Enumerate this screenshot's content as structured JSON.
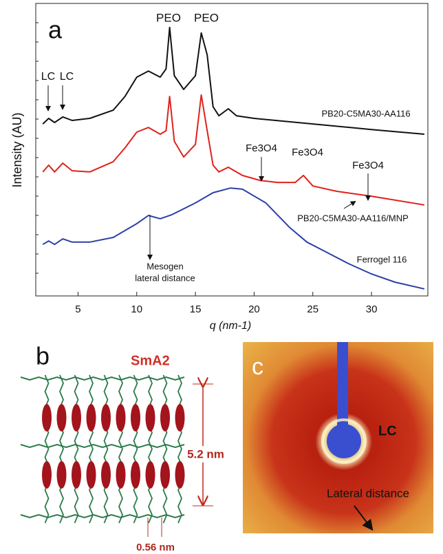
{
  "chart_data": {
    "type": "line",
    "panel_label": "a",
    "x_label": "q (nm-1)",
    "y_label": "Intensity (AU)",
    "xlim": [
      1.4,
      34.8
    ],
    "xticks": [
      5,
      10,
      15,
      20,
      25,
      30
    ],
    "ylim": [
      0,
      100
    ],
    "series": [
      {
        "name": "PB20-C5MA30-AA116",
        "color": "#111111",
        "x": [
          2,
          2.5,
          3,
          3.7,
          4.5,
          6,
          8,
          9,
          10,
          11,
          12,
          12.5,
          12.8,
          13.2,
          14,
          15,
          15.5,
          16,
          16.5,
          17,
          17.8,
          18.5,
          20,
          25,
          30,
          34.5
        ],
        "values": [
          58.8,
          60.7,
          59.3,
          61.2,
          60,
          60.7,
          63.5,
          68.2,
          74.8,
          76.9,
          74.8,
          77.6,
          91.8,
          75.3,
          70.6,
          75.3,
          89.9,
          82.4,
          64.7,
          61.6,
          64,
          61.6,
          60.7,
          58.8,
          56.9,
          55.3
        ]
      },
      {
        "name": "PB20-C5MA30-AA116/MNP",
        "color": "#e0201a",
        "x": [
          2,
          2.5,
          3,
          3.7,
          4.5,
          6,
          8,
          9,
          10,
          11,
          12,
          12.5,
          12.8,
          13.2,
          14,
          15,
          15.5,
          16,
          16.5,
          17,
          17.8,
          19,
          20.5,
          22,
          23.5,
          24.2,
          25,
          27,
          30,
          34.5
        ],
        "values": [
          42.4,
          44.7,
          42.4,
          45.4,
          42.8,
          42.4,
          45.9,
          50.6,
          56,
          57.6,
          55.3,
          56.5,
          68.2,
          52.9,
          47.5,
          51.8,
          68.7,
          56.5,
          44.7,
          42.4,
          44,
          41.2,
          39.5,
          38.8,
          38.8,
          41.2,
          37.6,
          35.8,
          34.1,
          31.1
        ]
      },
      {
        "name": "Ferrogel 116",
        "color": "#2b3fa8",
        "x": [
          2,
          2.5,
          3,
          3.7,
          4.5,
          6,
          8,
          10,
          11,
          12,
          13,
          15,
          16.5,
          18,
          19,
          21,
          23,
          24.5,
          26,
          28,
          30,
          32,
          34.5
        ],
        "values": [
          17.6,
          18.8,
          17.6,
          19.5,
          18.4,
          18.4,
          20,
          24.7,
          27.5,
          26.4,
          27.8,
          31.8,
          35.3,
          36.9,
          36.5,
          31.8,
          23.5,
          18.4,
          15.3,
          11.1,
          7.5,
          4.7,
          2.4
        ]
      }
    ],
    "annotations": [
      "LC",
      "LC",
      "PEO",
      "PEO",
      "Fe3O4",
      "Fe3O4",
      "Fe3O4",
      "Mesogen",
      "lateral distance"
    ]
  },
  "panel_b": {
    "label": "b",
    "phase": "SmA2",
    "layer_spacing": "5.2 nm",
    "lateral_spacing": "0.56 nm"
  },
  "panel_c": {
    "label": "c",
    "ring_label": "LC",
    "arrow_label": "Lateral distance"
  }
}
